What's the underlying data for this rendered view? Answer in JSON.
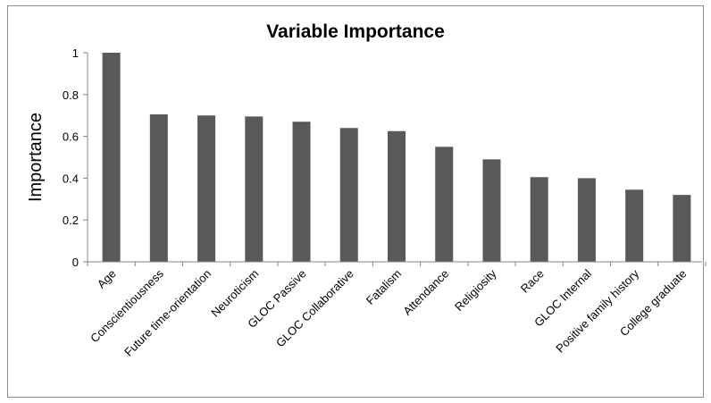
{
  "chart_data": {
    "type": "bar",
    "title": "Variable Importance",
    "xlabel": "",
    "ylabel": "Importance",
    "ylim": [
      0,
      1
    ],
    "yticks": [
      "0",
      "0.2",
      "0.4",
      "0.6",
      "0.8",
      "1"
    ],
    "yticks_values": [
      0,
      0.2,
      0.4,
      0.6,
      0.8,
      1
    ],
    "grid": false,
    "legend": "none",
    "bar_color": "#595959",
    "categories": [
      "Age",
      "Conscientiousness",
      "Future time-orientation",
      "Neuroticism",
      "GLOC Passive",
      "GLOC Collaborative",
      "Fatalism",
      "Attendance",
      "Religiosity",
      "Race",
      "GLOC Internal",
      "Positive family history",
      "College graduate"
    ],
    "values": [
      1.0,
      0.705,
      0.7,
      0.695,
      0.67,
      0.64,
      0.625,
      0.55,
      0.49,
      0.405,
      0.4,
      0.345,
      0.32
    ]
  }
}
